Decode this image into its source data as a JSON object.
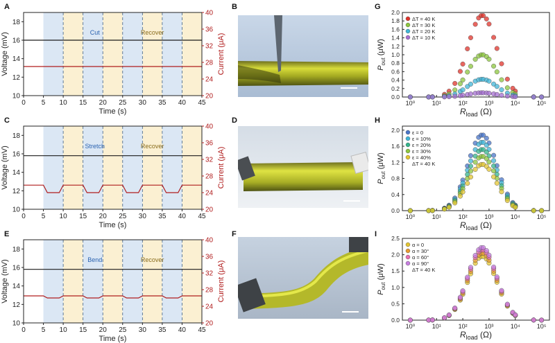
{
  "panels": {
    "A": {
      "letter": "A",
      "label1": "Cut",
      "label2": "Recover"
    },
    "B": {
      "letter": "B"
    },
    "C": {
      "letter": "C",
      "label1": "Stretch",
      "label2": "Recover"
    },
    "D": {
      "letter": "D"
    },
    "E": {
      "letter": "E",
      "label1": "Bend",
      "label2": "Recover"
    },
    "F": {
      "letter": "F"
    },
    "G": {
      "letter": "G"
    },
    "H": {
      "letter": "H"
    },
    "I": {
      "letter": "I"
    }
  },
  "colors": {
    "voltage": "#1a1a1a",
    "current": "#b01c1c",
    "blue_band": "#dbe7f4",
    "yellow_band": "#fbf0d2",
    "cut_label": "#2b63b0",
    "recover_label": "#8a6d1e",
    "axis_right": "#b01c1c"
  },
  "chart_data": [
    {
      "id": "A",
      "type": "line",
      "xlabel": "Time (s)",
      "ylabel": "Voltage (mV)",
      "y2label": "Current (μA)",
      "xlim": [
        0,
        45
      ],
      "ylim": [
        10,
        19
      ],
      "y2lim": [
        20,
        40
      ],
      "xticks": [
        0,
        5,
        10,
        15,
        20,
        25,
        30,
        35,
        40,
        45
      ],
      "yticks": [
        10,
        12,
        14,
        16,
        18
      ],
      "y2ticks": [
        20,
        24,
        28,
        32,
        36,
        40
      ],
      "bands": [
        [
          5,
          10,
          "blue"
        ],
        [
          10,
          15,
          "yellow"
        ],
        [
          15,
          20,
          "blue"
        ],
        [
          20,
          25,
          "yellow"
        ],
        [
          25,
          30,
          "blue"
        ],
        [
          30,
          35,
          "yellow"
        ],
        [
          35,
          40,
          "blue"
        ],
        [
          40,
          45,
          "yellow"
        ]
      ],
      "series": [
        {
          "name": "Voltage",
          "axis": "left",
          "x": [
            0,
            45
          ],
          "values": [
            16.0,
            16.0
          ]
        },
        {
          "name": "Current",
          "axis": "right",
          "x": [
            0,
            45
          ],
          "values": [
            27.0,
            27.0
          ]
        }
      ]
    },
    {
      "id": "C",
      "type": "line",
      "xlabel": "Time (s)",
      "ylabel": "Voltage (mV)",
      "y2label": "Current (μA)",
      "xlim": [
        0,
        45
      ],
      "ylim": [
        10,
        19
      ],
      "y2lim": [
        20,
        40
      ],
      "xticks": [
        0,
        5,
        10,
        15,
        20,
        25,
        30,
        35,
        40,
        45
      ],
      "yticks": [
        10,
        12,
        14,
        16,
        18
      ],
      "y2ticks": [
        20,
        24,
        28,
        32,
        36,
        40
      ],
      "bands": [
        [
          5,
          10,
          "blue"
        ],
        [
          10,
          15,
          "yellow"
        ],
        [
          15,
          20,
          "blue"
        ],
        [
          20,
          25,
          "yellow"
        ],
        [
          25,
          30,
          "blue"
        ],
        [
          30,
          35,
          "yellow"
        ],
        [
          35,
          40,
          "blue"
        ],
        [
          40,
          45,
          "yellow"
        ]
      ],
      "series": [
        {
          "name": "Voltage",
          "axis": "left",
          "x": [
            0,
            45
          ],
          "values": [
            15.8,
            15.8
          ]
        },
        {
          "name": "Current",
          "axis": "right",
          "x": [
            0,
            5,
            6,
            9,
            10,
            11,
            15,
            16,
            19,
            20,
            21,
            25,
            26,
            29,
            30,
            31,
            35,
            36,
            39,
            40,
            41,
            45
          ],
          "values": [
            25.8,
            25.8,
            24.0,
            24.0,
            25.8,
            25.8,
            25.8,
            24.0,
            24.0,
            25.8,
            25.8,
            25.8,
            24.0,
            24.0,
            25.8,
            25.8,
            25.8,
            24.0,
            24.0,
            25.8,
            25.8,
            25.8
          ]
        }
      ]
    },
    {
      "id": "E",
      "type": "line",
      "xlabel": "Time (s)",
      "ylabel": "Voltage (mV)",
      "y2label": "Current (μA)",
      "xlim": [
        0,
        45
      ],
      "ylim": [
        10,
        19
      ],
      "y2lim": [
        20,
        40
      ],
      "xticks": [
        0,
        5,
        10,
        15,
        20,
        25,
        30,
        35,
        40,
        45
      ],
      "yticks": [
        10,
        12,
        14,
        16,
        18
      ],
      "y2ticks": [
        20,
        24,
        28,
        32,
        36,
        40
      ],
      "bands": [
        [
          5,
          10,
          "blue"
        ],
        [
          10,
          15,
          "yellow"
        ],
        [
          15,
          20,
          "blue"
        ],
        [
          20,
          25,
          "yellow"
        ],
        [
          25,
          30,
          "blue"
        ],
        [
          30,
          35,
          "yellow"
        ],
        [
          35,
          40,
          "blue"
        ],
        [
          40,
          45,
          "yellow"
        ]
      ],
      "series": [
        {
          "name": "Voltage",
          "axis": "left",
          "x": [
            0,
            45
          ],
          "values": [
            15.8,
            15.8
          ]
        },
        {
          "name": "Current",
          "axis": "right",
          "x": [
            0,
            5,
            6,
            9,
            10,
            11,
            15,
            16,
            19,
            20,
            21,
            25,
            26,
            29,
            30,
            31,
            35,
            36,
            39,
            40,
            41,
            45
          ],
          "values": [
            26.5,
            26.5,
            26.0,
            26.0,
            26.5,
            26.5,
            26.5,
            26.0,
            26.0,
            26.5,
            26.5,
            26.5,
            26.0,
            26.0,
            26.5,
            26.5,
            26.5,
            26.0,
            26.0,
            26.5,
            26.5,
            26.5
          ]
        }
      ]
    },
    {
      "id": "G",
      "type": "scatter",
      "xscale": "log",
      "xlabel_main": "R",
      "xlabel_sub": "load",
      "xlabel_unit": " (Ω)",
      "ylabel_main": "P",
      "ylabel_sub": "out",
      "ylabel_unit": " (μW)",
      "xlim": [
        0.5,
        200000
      ],
      "ylim": [
        0,
        2.0
      ],
      "yticks": [
        0.0,
        0.2,
        0.4,
        0.6,
        0.8,
        1.0,
        1.2,
        1.4,
        1.6,
        1.8,
        2.0
      ],
      "xticks": [
        1,
        10,
        100,
        1000,
        10000,
        100000
      ],
      "xtick_labels": [
        "10⁰",
        "10¹",
        "10²",
        "10³",
        "10⁴",
        "10⁵"
      ],
      "legend_position": "top-left",
      "series": [
        {
          "name": "ΔT = 40 K",
          "color": "#e0332b",
          "peak": 1.93
        },
        {
          "name": "ΔT = 30 K",
          "color": "#8cc63e",
          "peak": 1.0
        },
        {
          "name": "ΔT = 20 K",
          "color": "#3fb6d8",
          "peak": 0.42
        },
        {
          "name": "ΔT = 10 K",
          "color": "#a66fd1",
          "peak": 0.1
        }
      ]
    },
    {
      "id": "H",
      "type": "scatter",
      "xscale": "log",
      "xlabel_main": "R",
      "xlabel_sub": "load",
      "xlabel_unit": " (Ω)",
      "ylabel_main": "P",
      "ylabel_sub": "out",
      "ylabel_unit": " (μW)",
      "xlim": [
        0.5,
        200000
      ],
      "ylim": [
        0,
        2.1
      ],
      "yticks": [
        0.0,
        0.4,
        0.8,
        1.2,
        1.6,
        2.0
      ],
      "xticks": [
        1,
        10,
        100,
        1000,
        10000,
        100000
      ],
      "xtick_labels": [
        "10⁰",
        "10¹",
        "10²",
        "10³",
        "10⁴",
        "10⁵"
      ],
      "legend_position": "top-left",
      "legend_note": "ΔT = 40 K",
      "series": [
        {
          "name": "ε = 0",
          "color": "#4a76c9",
          "peak": 1.88
        },
        {
          "name": "ε = 10%",
          "color": "#3fb6d8",
          "peak": 1.7
        },
        {
          "name": "ε = 20%",
          "color": "#34b48c",
          "peak": 1.52
        },
        {
          "name": "ε = 30%",
          "color": "#8cc63e",
          "peak": 1.35
        },
        {
          "name": "ε = 40%",
          "color": "#e3c531",
          "peak": 1.15
        }
      ]
    },
    {
      "id": "I",
      "type": "scatter",
      "xscale": "log",
      "xlabel_main": "R",
      "xlabel_sub": "load",
      "xlabel_unit": " (Ω)",
      "ylabel_main": "P",
      "ylabel_sub": "out",
      "ylabel_unit": " (μW)",
      "xlim": [
        0.5,
        200000
      ],
      "ylim": [
        0,
        2.5
      ],
      "yticks": [
        0.0,
        0.5,
        1.0,
        1.5,
        2.0,
        2.5
      ],
      "xticks": [
        1,
        10,
        100,
        1000,
        10000,
        100000
      ],
      "xtick_labels": [
        "10⁰",
        "10¹",
        "10²",
        "10³",
        "10⁴",
        "10⁵"
      ],
      "legend_position": "top-left",
      "legend_note": "ΔT = 40 K",
      "series": [
        {
          "name": "α = 0",
          "color": "#e3c531",
          "peak": 1.95
        },
        {
          "name": "α = 30°",
          "color": "#e89a2e",
          "peak": 2.05
        },
        {
          "name": "α = 60°",
          "color": "#e86fb0",
          "peak": 2.15
        },
        {
          "name": "α = 90°",
          "color": "#c77ee0",
          "peak": 2.22
        }
      ]
    }
  ],
  "scatter_x": [
    1,
    5,
    7,
    20,
    30,
    50,
    80,
    100,
    150,
    200,
    300,
    400,
    500,
    600,
    800,
    1000,
    1500,
    2000,
    3000,
    5000,
    8000,
    10000,
    50000,
    100000
  ]
}
